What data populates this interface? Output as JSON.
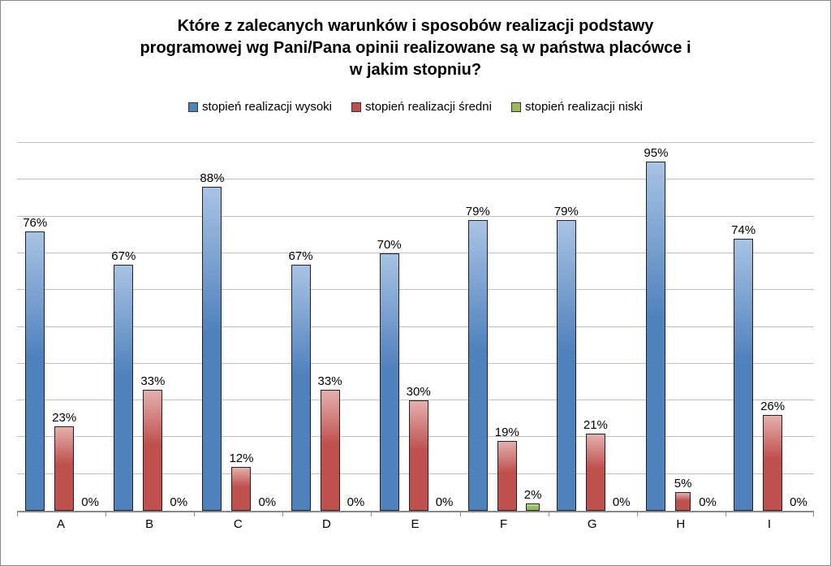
{
  "chart": {
    "type": "bar",
    "title_line1": "Które z zalecanych warunków i sposobów realizacji podstawy",
    "title_line2": "programowej wg Pani/Pana opinii realizowane są w państwa placówce i",
    "title_line3": "w jakim stopniu?",
    "title_fontsize": 20,
    "title_fontweight": "bold",
    "legend_fontsize": 15,
    "label_fontsize": 15,
    "category_fontsize": 15,
    "colors": {
      "wysoki": "#4f81bd",
      "sredni": "#c0504d",
      "niski": "#9bbb59",
      "border": "#222222",
      "gridline": "#bfbfbf",
      "axis": "#888888",
      "text": "#000000",
      "background": "#ffffff"
    },
    "gradients": {
      "wysoki_light": "#a8c3e4",
      "sredni_light": "#e3b0ae",
      "niski_light": "#cddeb0"
    },
    "series_names": {
      "wysoki": "stopień realizacji wysoki",
      "sredni": "stopień realizacji średni",
      "niski": "stopień realizacji niski"
    },
    "categories": [
      "A",
      "B",
      "C",
      "D",
      "E",
      "F",
      "G",
      "H",
      "I"
    ],
    "y_max": 100,
    "gridlines": [
      0,
      10,
      20,
      30,
      40,
      50,
      60,
      70,
      80,
      90,
      100
    ],
    "data": {
      "A": {
        "wysoki": 76,
        "sredni": 23,
        "niski": 0
      },
      "B": {
        "wysoki": 67,
        "sredni": 33,
        "niski": 0
      },
      "C": {
        "wysoki": 88,
        "sredni": 12,
        "niski": 0
      },
      "D": {
        "wysoki": 67,
        "sredni": 33,
        "niski": 0
      },
      "E": {
        "wysoki": 70,
        "sredni": 30,
        "niski": 0
      },
      "F": {
        "wysoki": 79,
        "sredni": 19,
        "niski": 2
      },
      "G": {
        "wysoki": 79,
        "sredni": 21,
        "niski": 0
      },
      "H": {
        "wysoki": 95,
        "sredni": 5,
        "niski": 0
      },
      "I": {
        "wysoki": 74,
        "sredni": 26,
        "niski": 0
      }
    }
  }
}
